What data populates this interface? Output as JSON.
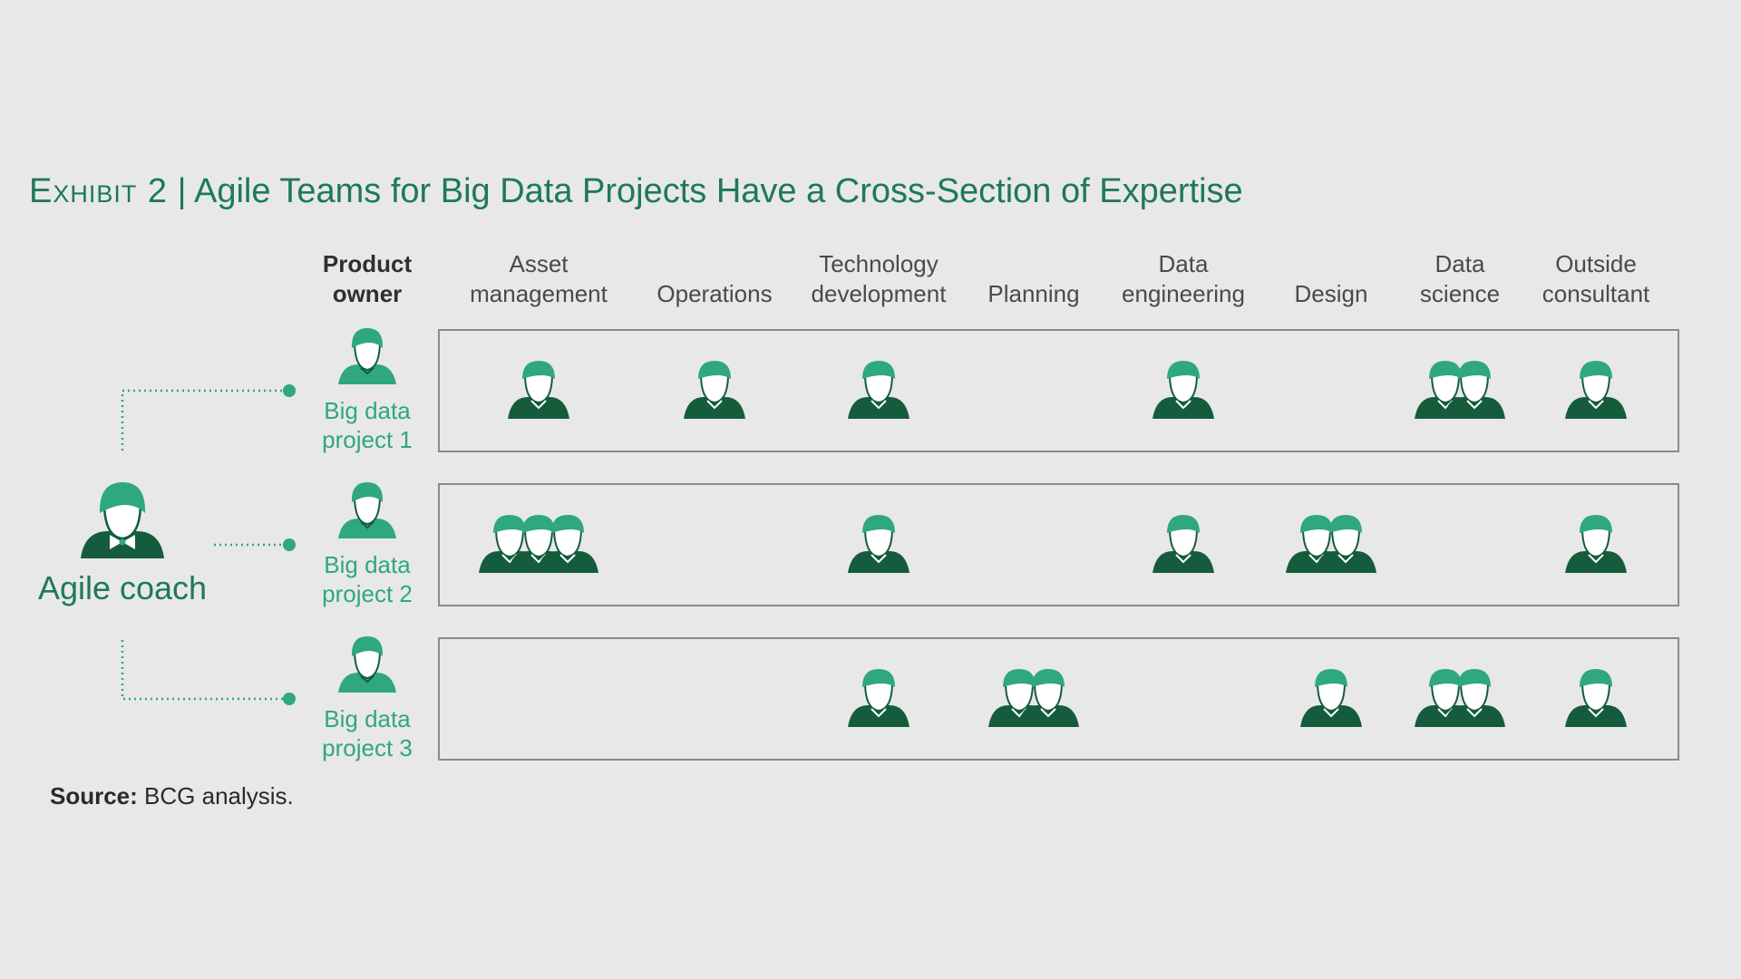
{
  "title": {
    "exhibit": "Exhibit 2",
    "separator": "|",
    "text": "Agile Teams for Big Data Projects Have a Cross-Section of Expertise"
  },
  "columns": [
    {
      "key": "product_owner",
      "label": "Product\nowner",
      "bold": true
    },
    {
      "key": "asset_management",
      "label": "Asset\nmanagement"
    },
    {
      "key": "operations",
      "label": "Operations"
    },
    {
      "key": "technology_development",
      "label": "Technology\ndevelopment"
    },
    {
      "key": "planning",
      "label": "Planning"
    },
    {
      "key": "data_engineering",
      "label": "Data\nengineering"
    },
    {
      "key": "design",
      "label": "Design"
    },
    {
      "key": "data_science",
      "label": "Data\nscience"
    },
    {
      "key": "outside_consultant",
      "label": "Outside\nconsultant"
    }
  ],
  "coach": {
    "label": "Agile coach"
  },
  "projects": [
    {
      "label": "Big data\nproject 1",
      "staff": {
        "asset_management": 1,
        "operations": 1,
        "technology_development": 1,
        "planning": 0,
        "data_engineering": 1,
        "design": 0,
        "data_science": 2,
        "outside_consultant": 1
      }
    },
    {
      "label": "Big data\nproject 2",
      "staff": {
        "asset_management": 3,
        "operations": 0,
        "technology_development": 1,
        "planning": 0,
        "data_engineering": 1,
        "design": 2,
        "data_science": 0,
        "outside_consultant": 1
      }
    },
    {
      "label": "Big data\nproject 3",
      "staff": {
        "asset_management": 0,
        "operations": 0,
        "technology_development": 1,
        "planning": 2,
        "data_engineering": 0,
        "design": 1,
        "data_science": 2,
        "outside_consultant": 1
      }
    }
  ],
  "source": {
    "label": "Source:",
    "text": "BCG analysis."
  },
  "colors": {
    "background": "#e8e8e9",
    "title": "#1d7a55",
    "head": "#2fa77f",
    "body": "#155c3c",
    "connector": "#2fa77f",
    "box_border": "#8a8a8a"
  },
  "icons": {
    "member": "male-person-icon",
    "owner": "female-person-icon",
    "coach": "female-person-with-bow-icon"
  }
}
